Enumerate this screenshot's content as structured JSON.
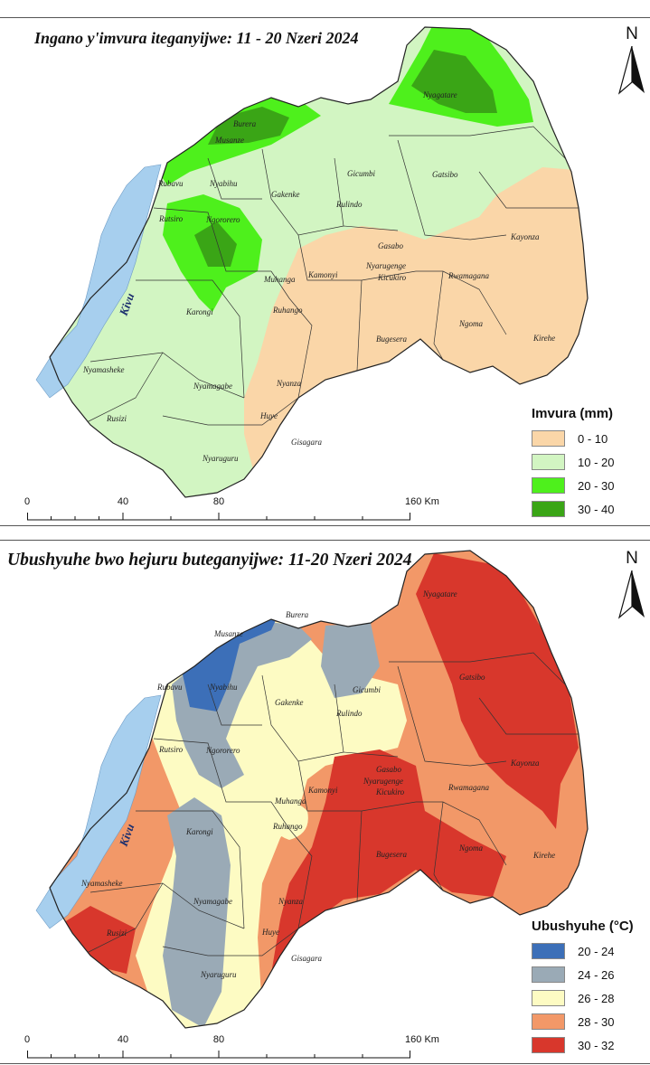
{
  "panels": [
    {
      "title": "Ingano y'imvura iteganyijwe: 11 - 20 Nzeri 2024",
      "north_label": "N",
      "legend": {
        "title": "Imvura (mm)",
        "items": [
          {
            "label": "0 - 10",
            "color": "#fad6a8"
          },
          {
            "label": "10 - 20",
            "color": "#d2f5c2"
          },
          {
            "label": "20 - 30",
            "color": "#4ef01c"
          },
          {
            "label": "30 - 40",
            "color": "#3aa516"
          }
        ]
      },
      "scale": {
        "ticks": [
          "0",
          "40",
          "80",
          "160 Km"
        ]
      }
    },
    {
      "title": "Ubushyuhe bwo hejuru buteganyijwe: 11-20 Nzeri 2024",
      "north_label": "N",
      "legend": {
        "title": "Ubushyuhe (°C)",
        "items": [
          {
            "label": "20 - 24",
            "color": "#3c6fb8"
          },
          {
            "label": "24 - 26",
            "color": "#9aaab6"
          },
          {
            "label": "26 - 28",
            "color": "#fdfbc3"
          },
          {
            "label": "28 - 30",
            "color": "#f29868"
          },
          {
            "label": "30 - 32",
            "color": "#d8372c"
          }
        ]
      },
      "scale": {
        "ticks": [
          "0",
          "40",
          "80",
          "160 Km"
        ]
      }
    }
  ],
  "lake": {
    "name": "Kivu",
    "color": "#a7cfee"
  },
  "districts": [
    "Nyagatare",
    "Burera",
    "Musanze",
    "Gicumbi",
    "Gatsibo",
    "Rubavu",
    "Nyabihu",
    "Gakenke",
    "Rulindo",
    "Kayonza",
    "Rutsiro",
    "Ngororero",
    "Gasabo",
    "Nyarugenge",
    "Kicukiro",
    "Kamonyi",
    "Muhanga",
    "Rwamagana",
    "Karongi",
    "Ruhango",
    "Bugesera",
    "Ngoma",
    "Kirehe",
    "Nyamasheke",
    "Nyamagabe",
    "Nyanza",
    "Huye",
    "Rusizi",
    "Gisagara",
    "Nyaruguru"
  ]
}
